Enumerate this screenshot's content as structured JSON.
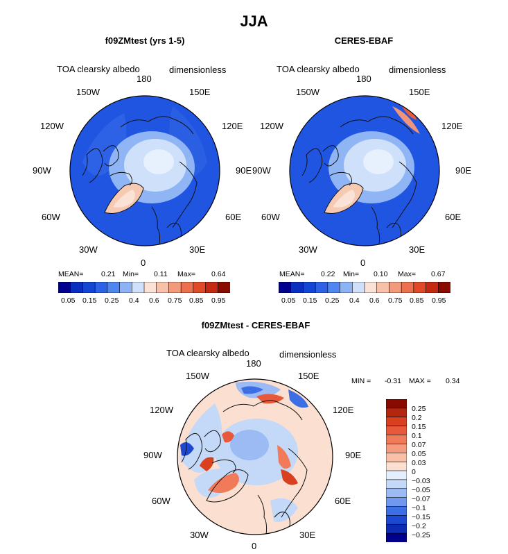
{
  "title": "JJA",
  "palette": [
    "#00008f",
    "#0a2fbf",
    "#1446d6",
    "#2e62e6",
    "#4f86f0",
    "#8db2f5",
    "#cfe0fb",
    "#fbe2d6",
    "#f7c0a8",
    "#f29a7c",
    "#ec6f4e",
    "#e14a26",
    "#c42a12",
    "#8b0a00"
  ],
  "panels": [
    {
      "title": "f09ZMtest (yrs 1-5)",
      "var_label": "TOA clearsky albedo",
      "units": "dimensionless",
      "lon_labels": {
        "lon180": "180",
        "lon150w": "150W",
        "lon150e": "150E",
        "lon120w": "120W",
        "lon120e": "120E",
        "lon90w": "90W",
        "lon90e": "90E",
        "lon60w": "60W",
        "lon60e": "60E",
        "lon30w": "30W",
        "lon30e": "30E",
        "lon0": "0"
      },
      "stats": {
        "mean_label": "MEAN=",
        "mean": "0.21",
        "min_label": "Min=",
        "min": "0.11",
        "max_label": "Max=",
        "max": "0.64"
      }
    },
    {
      "title": "CERES-EBAF",
      "var_label": "TOA clearsky albedo",
      "units": "dimensionless",
      "lon_labels": {
        "lon180": "180",
        "lon150w": "150W",
        "lon150e": "150E",
        "lon120w": "120W",
        "lon120e": "120E",
        "lon90w": "90W",
        "lon90e": "90E",
        "lon60w": "60W",
        "lon60e": "60E",
        "lon30w": "30W",
        "lon30e": "30E",
        "lon0": "0"
      },
      "stats": {
        "mean_label": "MEAN=",
        "mean": "0.22",
        "min_label": "Min=",
        "min": "0.10",
        "max_label": "Max=",
        "max": "0.67"
      }
    }
  ],
  "diff_panel": {
    "title": "f09ZMtest - CERES-EBAF",
    "var_label": "TOA clearsky albedo",
    "units": "dimensionless",
    "lon_labels": {
      "lon180": "180",
      "lon150w": "150W",
      "lon150e": "150E",
      "lon120w": "120W",
      "lon120e": "120E",
      "lon90w": "90W",
      "lon90e": "90E",
      "lon60w": "60W",
      "lon60e": "60E",
      "lon30w": "30W",
      "lon30e": "30E",
      "lon0": "0"
    },
    "stats": {
      "min_label": "MIN =",
      "min": "-0.31",
      "max_label": "MAX =",
      "max": "0.34"
    }
  },
  "chart_data": [
    {
      "type": "heatmap",
      "projection": "north polar stereographic",
      "title": "f09ZMtest (yrs 1-5)",
      "variable": "TOA clearsky albedo",
      "units": "dimensionless",
      "mean": 0.21,
      "min": 0.11,
      "max": 0.64,
      "colorbar_levels": [
        0.05,
        0.1,
        0.15,
        0.2,
        0.25,
        0.3,
        0.4,
        0.5,
        0.6,
        0.7,
        0.75,
        0.8,
        0.85,
        0.9,
        0.95
      ],
      "colorbar_tick_labels": [
        "0.05",
        "0.15",
        "0.25",
        "0.4",
        "0.6",
        "0.75",
        "0.85",
        "0.95"
      ]
    },
    {
      "type": "heatmap",
      "projection": "north polar stereographic",
      "title": "CERES-EBAF",
      "variable": "TOA clearsky albedo",
      "units": "dimensionless",
      "mean": 0.22,
      "min": 0.1,
      "max": 0.67,
      "colorbar_levels": [
        0.05,
        0.1,
        0.15,
        0.2,
        0.25,
        0.3,
        0.4,
        0.5,
        0.6,
        0.7,
        0.75,
        0.8,
        0.85,
        0.9,
        0.95
      ],
      "colorbar_tick_labels": [
        "0.05",
        "0.15",
        "0.25",
        "0.4",
        "0.6",
        "0.75",
        "0.85",
        "0.95"
      ]
    },
    {
      "type": "heatmap",
      "projection": "north polar stereographic",
      "title": "f09ZMtest - CERES-EBAF",
      "variable": "TOA clearsky albedo",
      "units": "dimensionless",
      "min": -0.31,
      "max": 0.34,
      "colorbar_tick_labels": [
        "0.25",
        "0.2",
        "0.15",
        "0.1",
        "0.07",
        "0.05",
        "0.03",
        "0",
        "−0.03",
        "−0.05",
        "−0.07",
        "−0.1",
        "−0.15",
        "−0.2",
        "−0.25"
      ],
      "colorbar_colors": [
        "#8b0a00",
        "#b5260f",
        "#d8401f",
        "#e8583a",
        "#f07a5a",
        "#f59b80",
        "#f9bfa7",
        "#fbe0d2",
        "#e4eefc",
        "#c4d8f8",
        "#9cbbf4",
        "#6f98ee",
        "#3e6ee4",
        "#1c48d2",
        "#0b2cb3",
        "#00008a"
      ]
    }
  ]
}
